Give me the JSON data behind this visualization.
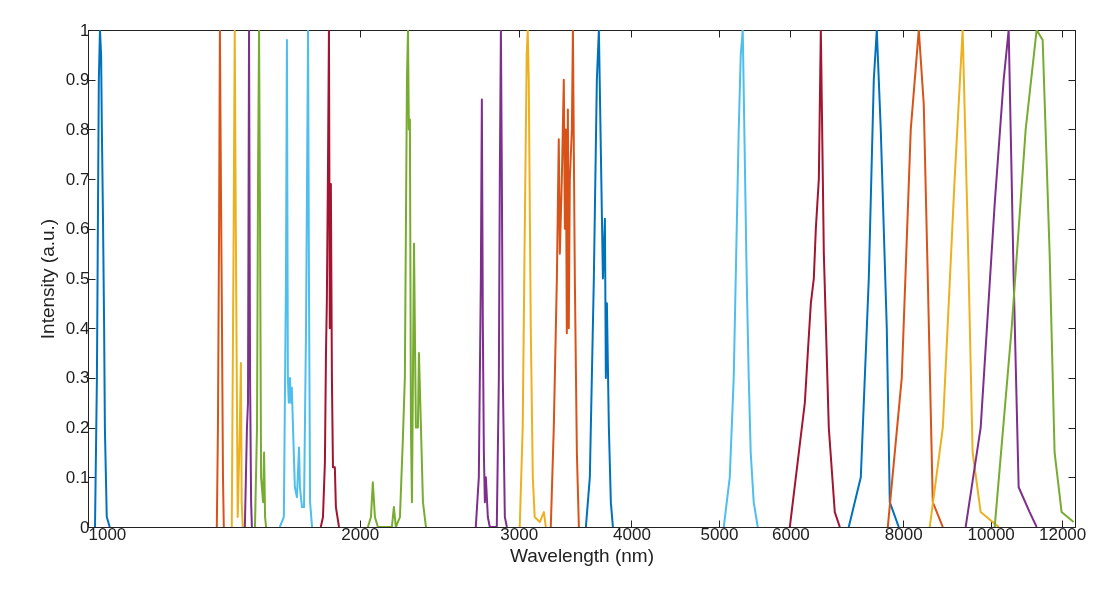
{
  "chart_data": {
    "type": "line",
    "xlabel": "Wavelength (nm)",
    "ylabel": "Intensity (a.u.)",
    "log": "x",
    "xlim": [
      1000,
      12400
    ],
    "xticks": [
      1000,
      2000,
      3000,
      4000,
      5000,
      6000,
      8000,
      10000,
      12000
    ],
    "ylim": [
      0,
      1
    ],
    "yticks": [
      0,
      0.1,
      0.2,
      0.3,
      0.4,
      0.5,
      0.6,
      0.7,
      0.8,
      0.9,
      1
    ],
    "grid": false,
    "legend": false,
    "series": [
      {
        "color": "#0072bd",
        "x": [
          1018,
          1023,
          1028,
          1031,
          1034,
          1036,
          1039,
          1042,
          1044,
          1049,
          1057
        ],
        "values": [
          0,
          0.3,
          0.9,
          1,
          0.95,
          0.8,
          0.62,
          0.4,
          0.2,
          0.02,
          0
        ]
      },
      {
        "color": "#d95319",
        "x": [
          1389,
          1393,
          1397,
          1400,
          1404,
          1407,
          1411,
          1414
        ],
        "values": [
          0,
          0.2,
          0.6,
          1,
          0.66,
          0.44,
          0.1,
          0
        ]
      },
      {
        "color": "#edb120",
        "x": [
          1443,
          1450,
          1454,
          1458,
          1465,
          1473,
          1477,
          1480,
          1484
        ],
        "values": [
          0,
          0.6,
          1,
          0.6,
          0.02,
          0.2,
          0.33,
          0.05,
          0
        ]
      },
      {
        "color": "#7e2f8e",
        "x": [
          1492,
          1496,
          1500,
          1504,
          1508,
          1512,
          1516,
          1519
        ],
        "values": [
          0,
          0.1,
          0.2,
          0.25,
          1,
          0.3,
          0.05,
          0
        ]
      },
      {
        "color": "#77ac30",
        "x": [
          1531,
          1539,
          1543,
          1547,
          1551,
          1555,
          1563,
          1567,
          1571,
          1575
        ],
        "values": [
          0,
          0.2,
          0.7,
          1,
          0.6,
          0.1,
          0.05,
          0.15,
          0.02,
          0
        ]
      },
      {
        "color": "#4dbeee",
        "x": [
          1631,
          1648,
          1657,
          1661,
          1665,
          1669,
          1674,
          1678,
          1682,
          1687,
          1695,
          1704,
          1713,
          1717,
          1726,
          1735,
          1744,
          1753,
          1757,
          1762,
          1771
        ],
        "values": [
          0,
          0.02,
          0.5,
          0.98,
          0.3,
          0.25,
          0.3,
          0.25,
          0.28,
          0.2,
          0.08,
          0.06,
          0.16,
          0.08,
          0.04,
          0.04,
          0.4,
          1,
          0.5,
          0.05,
          0
        ]
      },
      {
        "color": "#a2142f",
        "x": [
          1811,
          1821,
          1830,
          1835,
          1839,
          1844,
          1849,
          1853,
          1858,
          1863,
          1868,
          1877,
          1882,
          1897
        ],
        "values": [
          0,
          0.02,
          0.13,
          0.35,
          0.45,
          0.7,
          1,
          0.4,
          0.69,
          0.3,
          0.12,
          0.12,
          0.04,
          0
        ]
      },
      {
        "color": "#77ac30",
        "x": [
          2042,
          2058,
          2068,
          2079,
          2095,
          2171,
          2182,
          2193,
          2216,
          2233,
          2244,
          2256,
          2262,
          2267,
          2273,
          2279,
          2285,
          2297,
          2308,
          2320,
          2326,
          2338,
          2350,
          2368
        ],
        "values": [
          0,
          0.02,
          0.09,
          0.02,
          0,
          0,
          0.04,
          0,
          0.02,
          0.18,
          0.3,
          0.9,
          1,
          0.8,
          0.82,
          0.2,
          0.05,
          0.57,
          0.2,
          0.2,
          0.35,
          0.2,
          0.05,
          0
        ]
      },
      {
        "color": "#7e2f8e",
        "x": [
          2689,
          2710,
          2724,
          2731,
          2738,
          2745,
          2752,
          2759,
          2773,
          2787,
          2837,
          2852,
          2859,
          2867,
          2874,
          2881,
          2896,
          2911
        ],
        "values": [
          0,
          0.1,
          0.5,
          0.86,
          0.4,
          0.15,
          0.05,
          0.1,
          0.02,
          0,
          0,
          0.3,
          0.7,
          1,
          0.7,
          0.3,
          0.02,
          0
        ]
      },
      {
        "color": "#edb120",
        "x": [
          3008,
          3031,
          3047,
          3062,
          3070,
          3078,
          3094,
          3110,
          3125,
          3166,
          3199,
          3215
        ],
        "values": [
          0,
          0.2,
          0.6,
          0.95,
          1,
          0.9,
          0.4,
          0.1,
          0.02,
          0.01,
          0.03,
          0
        ]
      },
      {
        "color": "#d95319",
        "x": [
          3256,
          3281,
          3307,
          3323,
          3332,
          3349,
          3366,
          3375,
          3383,
          3392,
          3401,
          3409,
          3418,
          3436,
          3445,
          3462,
          3480,
          3498
        ],
        "values": [
          0,
          0.2,
          0.5,
          0.78,
          0.55,
          0.7,
          0.9,
          0.6,
          0.8,
          0.39,
          0.84,
          0.4,
          0.7,
          0.8,
          1,
          0.5,
          0.15,
          0
        ]
      },
      {
        "color": "#0072bd",
        "x": [
          3561,
          3597,
          3634,
          3662,
          3681,
          3700,
          3719,
          3738,
          3747,
          3757,
          3776,
          3795,
          3815
        ],
        "values": [
          0,
          0.1,
          0.5,
          0.9,
          1,
          0.75,
          0.5,
          0.62,
          0.3,
          0.45,
          0.2,
          0.05,
          0
        ]
      },
      {
        "color": "#4dbeee",
        "x": [
          5062,
          5140,
          5192,
          5232,
          5259,
          5286,
          5313,
          5340,
          5367,
          5395,
          5422,
          5464,
          5520
        ],
        "values": [
          0,
          0.1,
          0.3,
          0.6,
          0.8,
          0.95,
          1,
          0.75,
          0.5,
          0.3,
          0.15,
          0.05,
          0
        ]
      },
      {
        "color": "#a2142f",
        "x": [
          5991,
          6225,
          6272,
          6321,
          6369,
          6402,
          6451,
          6484,
          6534,
          6617,
          6719,
          6806
        ],
        "values": [
          0,
          0.25,
          0.35,
          0.45,
          0.5,
          0.6,
          0.7,
          1,
          0.55,
          0.2,
          0.03,
          0
        ]
      },
      {
        "color": "#0072bd",
        "x": [
          6963,
          7180,
          7328,
          7422,
          7479,
          7555,
          7672,
          7731,
          7910
        ],
        "values": [
          0,
          0.1,
          0.5,
          0.9,
          1,
          0.8,
          0.4,
          0.05,
          0
        ]
      },
      {
        "color": "#d95319",
        "x": [
          7692,
          7971,
          8156,
          8325,
          8431,
          8518,
          8627,
          8851
        ],
        "values": [
          0,
          0.3,
          0.8,
          1,
          0.85,
          0.5,
          0.05,
          0
        ]
      },
      {
        "color": "#edb120",
        "x": [
          8561,
          8851,
          9122,
          9310,
          9430,
          9550,
          9748,
          10206
        ],
        "values": [
          0,
          0.2,
          0.7,
          1,
          0.6,
          0.15,
          0.03,
          0
        ]
      },
      {
        "color": "#7e2f8e",
        "x": [
          9382,
          9748,
          10103,
          10337,
          10470,
          10604,
          10740,
          11045,
          11244
        ],
        "values": [
          0,
          0.2,
          0.65,
          0.9,
          1,
          0.5,
          0.08,
          0.03,
          0
        ]
      },
      {
        "color": "#77ac30",
        "x": [
          10103,
          10550,
          10934,
          11244,
          11418,
          11623,
          11771,
          11983,
          12355
        ],
        "values": [
          0,
          0.4,
          0.8,
          1,
          0.98,
          0.55,
          0.15,
          0.03,
          0.01
        ]
      }
    ]
  }
}
